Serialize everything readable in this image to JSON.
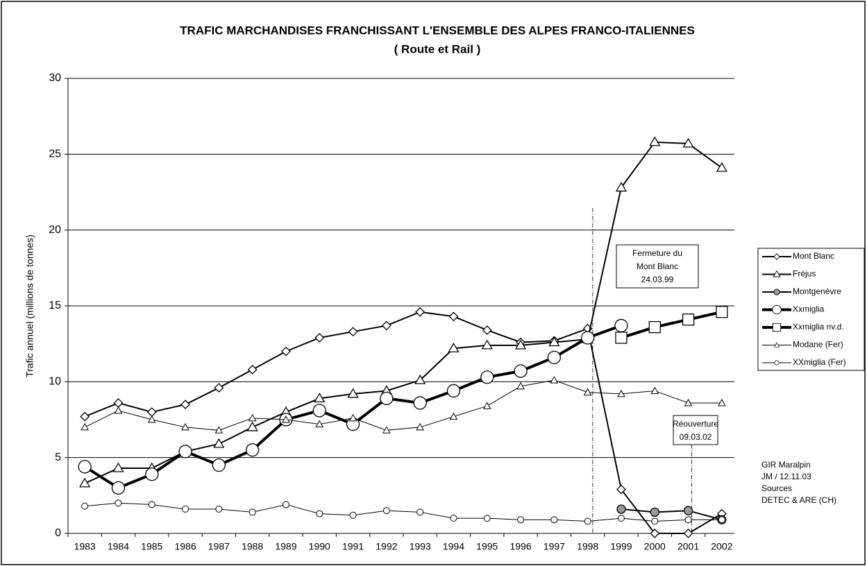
{
  "chart_data": {
    "type": "line",
    "title": "TRAFIC MARCHANDISES FRANCHISSANT L'ENSEMBLE DES ALPES FRANCO-ITALIENNES",
    "subtitle": "( Route et Rail )",
    "y_label": "Trafic annuel (millions de tonnes)",
    "categories": [
      "1983",
      "1984",
      "1985",
      "1986",
      "1987",
      "1988",
      "1989",
      "1990",
      "1991",
      "1992",
      "1993",
      "1994",
      "1995",
      "1996",
      "1997",
      "1998",
      "1999",
      "2000",
      "2001",
      "2002"
    ],
    "ylim": [
      0,
      30
    ],
    "yticks": [
      0,
      5,
      10,
      15,
      20,
      25,
      30
    ],
    "grid": true,
    "legend": "right",
    "series": [
      {
        "name": "Mont Blanc",
        "color": "#000000",
        "marker": "diamond",
        "line_width": 2,
        "values": [
          7.7,
          8.6,
          8.0,
          8.5,
          9.6,
          10.8,
          12.0,
          12.9,
          13.3,
          13.7,
          14.6,
          14.3,
          13.4,
          12.6,
          12.7,
          13.5,
          2.9,
          0,
          0,
          1.3
        ]
      },
      {
        "name": "Fréjus",
        "color": "#000000",
        "marker": "triangle",
        "line_width": 2,
        "values": [
          3.3,
          4.3,
          4.3,
          5.4,
          5.9,
          7.0,
          8.0,
          8.9,
          9.2,
          9.4,
          10.1,
          12.2,
          12.4,
          12.4,
          12.6,
          12.8,
          22.8,
          25.8,
          25.7,
          24.1
        ]
      },
      {
        "name": "Montgenèvre",
        "color": "#000000",
        "marker": "circle-gray",
        "line_width": 2,
        "values": [
          null,
          null,
          null,
          null,
          null,
          null,
          null,
          null,
          null,
          null,
          null,
          null,
          null,
          null,
          null,
          null,
          1.6,
          1.4,
          1.5,
          0.9
        ]
      },
      {
        "name": "Xxmiglia",
        "color": "#000000",
        "marker": "circle-big",
        "line_width": 4,
        "values": [
          4.4,
          3.0,
          3.9,
          5.4,
          4.5,
          5.5,
          7.5,
          8.1,
          7.2,
          8.9,
          8.6,
          9.4,
          10.3,
          10.7,
          11.6,
          12.9,
          13.7,
          null,
          null,
          null
        ]
      },
      {
        "name": "Xxmiglia nv.d.",
        "color": "#000000",
        "marker": "square",
        "line_width": 4,
        "values": [
          null,
          null,
          null,
          null,
          null,
          null,
          null,
          null,
          null,
          null,
          null,
          null,
          null,
          null,
          null,
          null,
          12.9,
          13.6,
          14.1,
          14.6
        ]
      },
      {
        "name": "Modane (Fer)",
        "color": "#000000",
        "marker": "triangle-small",
        "line_width": 1,
        "values": [
          7.0,
          8.1,
          7.5,
          7.0,
          6.8,
          7.6,
          7.5,
          7.2,
          7.6,
          6.8,
          7.0,
          7.7,
          8.4,
          9.7,
          10.1,
          9.3,
          9.2,
          9.4,
          8.6,
          8.6
        ]
      },
      {
        "name": "XXmiglia (Fer)",
        "color": "#000000",
        "marker": "circle-small",
        "line_width": 1,
        "values": [
          1.8,
          2.0,
          1.9,
          1.6,
          1.6,
          1.4,
          1.9,
          1.3,
          1.2,
          1.5,
          1.4,
          1.0,
          1.0,
          0.9,
          0.9,
          0.8,
          1.0,
          0.8,
          0.9,
          0.9
        ]
      }
    ],
    "annotations": [
      {
        "lines": [
          "Fermeture du",
          "Mont Blanc",
          "24.03.99"
        ]
      },
      {
        "lines": [
          "Réouverture",
          "09.03.02"
        ]
      }
    ],
    "notes": [
      "GIR Maralpin",
      "JM / 12.11.03",
      "Sources",
      "DETEC & ARE (CH)"
    ]
  }
}
